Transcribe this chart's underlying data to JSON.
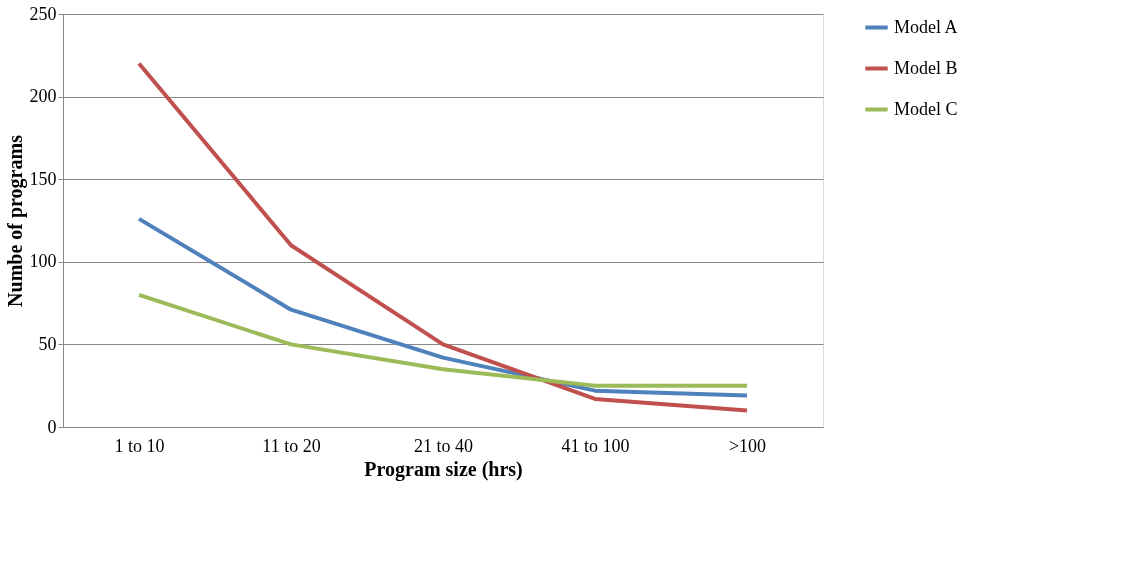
{
  "chart_data": {
    "type": "line",
    "xlabel": "Program size (hrs)",
    "ylabel": "Numbe of programs",
    "categories": [
      "1 to 10",
      "11 to 20",
      "21 to 40",
      "41 to 100",
      ">100"
    ],
    "series": [
      {
        "name": "Model A",
        "color": "#4f81bd",
        "values": [
          126,
          71,
          42,
          22,
          19
        ]
      },
      {
        "name": "Model B",
        "color": "#c0504d",
        "values": [
          220,
          110,
          50,
          17,
          10
        ]
      },
      {
        "name": "Model C",
        "color": "#9bbb59",
        "values": [
          80,
          50,
          35,
          25,
          25
        ]
      }
    ],
    "ylim": [
      0,
      250
    ],
    "yticks": [
      0,
      50,
      100,
      150,
      200,
      250
    ],
    "grid": "y",
    "legend": "right",
    "marker": "none",
    "line_style": "solid"
  }
}
